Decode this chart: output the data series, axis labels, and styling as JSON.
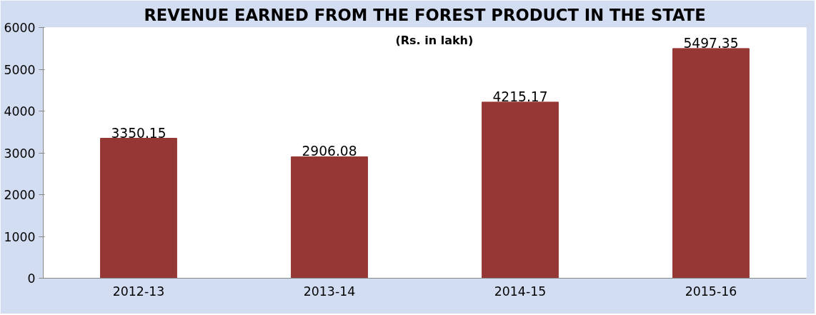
{
  "chart_data": {
    "type": "bar",
    "title": "REVENUE EARNED FROM THE FOREST PRODUCT IN THE STATE",
    "subtitle": "(Rs. in lakh)",
    "categories": [
      "2012-13",
      "2013-14",
      "2014-15",
      "2015-16"
    ],
    "values": [
      3350.15,
      2906.08,
      4215.17,
      5497.35
    ],
    "color": "#953735",
    "ylim": [
      0,
      6000
    ],
    "yticks": [
      0,
      1000,
      2000,
      3000,
      4000,
      5000,
      6000
    ],
    "grid": false,
    "data_labels": true
  }
}
